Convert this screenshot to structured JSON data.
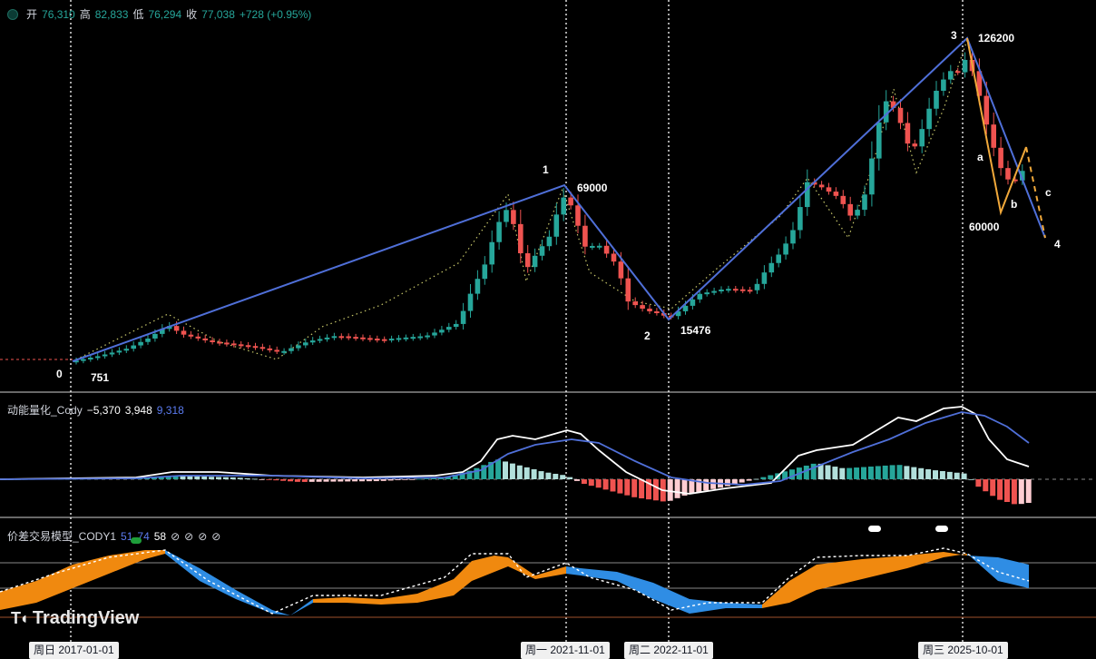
{
  "header": {
    "open_label": "开",
    "open": "76,310",
    "high_label": "高",
    "high": "82,833",
    "low_label": "低",
    "low": "76,294",
    "close_label": "收",
    "close": "77,038",
    "change": "+728 (+0.95%)"
  },
  "indicator1": {
    "name": "动能量化_Cody",
    "v1": "−5,370",
    "v2": "3,948",
    "v3": "9,318"
  },
  "indicator2": {
    "name": "价差交易模型_CODY1",
    "v1": "51",
    "v2": "74",
    "v3": "58",
    "empty_slots": [
      "⊘",
      "⊘",
      "⊘",
      "⊘"
    ]
  },
  "wave_labels": {
    "w0": "0",
    "w0_price": "751",
    "w1": "1",
    "w1_price": "69000",
    "w2": "2",
    "w2_price": "15476",
    "w3": "3",
    "w3_price": "126200",
    "a": "a",
    "b": "b",
    "c": "c",
    "w4": "4",
    "b_price": "60000"
  },
  "date_tags": [
    "周日 2017-01-01",
    "周一 2021-11-01",
    "周二 2022-11-01",
    "周三 2025-10-01"
  ],
  "brand": {
    "name": "TradingView"
  },
  "colors": {
    "up": "#26a69a",
    "down": "#ef5350",
    "wave_line": "#4f6fd8",
    "abc_line": "#f0a83a",
    "hist_up_dark": "#26a69a",
    "hist_up_light": "#b2dfdb",
    "hist_down_dark": "#ef5350",
    "hist_down_light": "#ffcdd2",
    "area_up": "#f0890f",
    "area_down": "#2f8de4"
  },
  "chart_data": {
    "type": "candlestick",
    "x_axis": "date",
    "scale": "log",
    "candles_interval": "1M",
    "pivots": [
      {
        "label": "0",
        "date": "2017-01-01",
        "price": 751
      },
      {
        "label": "1",
        "date": "2021-11-01",
        "price": 69000
      },
      {
        "label": "2",
        "date": "2022-11-01",
        "price": 15476
      },
      {
        "label": "3",
        "date": "2025-10-01",
        "price": 126200
      },
      {
        "label": "b",
        "price": 60000
      }
    ],
    "last_candle": {
      "open": 76310,
      "high": 82833,
      "low": 76294,
      "close": 77038,
      "change": 728,
      "change_pct": 0.95
    }
  }
}
